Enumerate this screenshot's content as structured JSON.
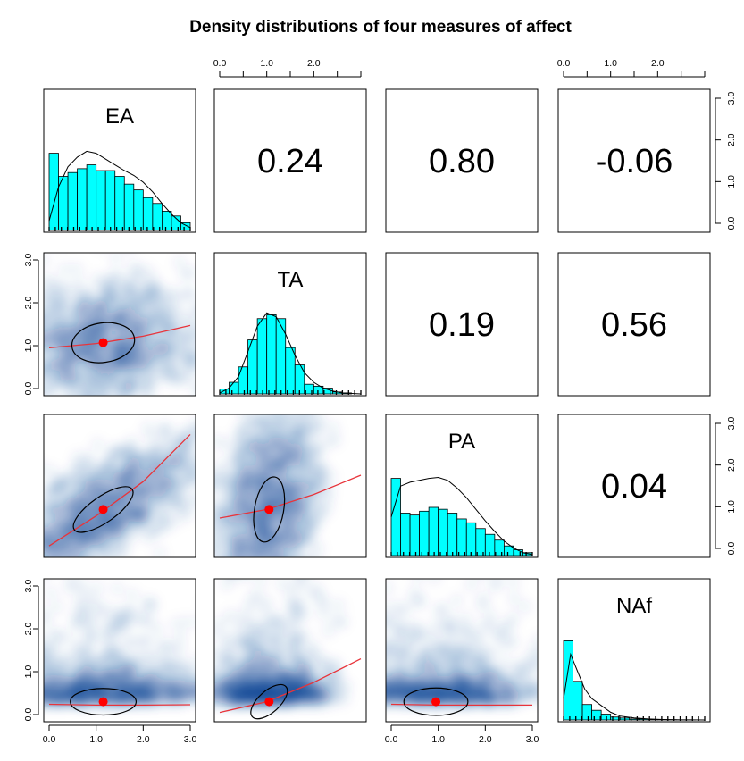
{
  "chart_data": {
    "type": "scatter",
    "title": "Density distributions of four measures of affect",
    "variables": [
      "EA",
      "TA",
      "PA",
      "NAf"
    ],
    "x_ticks": [
      "0.0",
      "1.0",
      "2.0",
      "3.0"
    ],
    "y_ticks": [
      "0.0",
      "1.0",
      "2.0",
      "3.0"
    ],
    "axis_range": [
      0,
      3
    ],
    "correlations": [
      {
        "pair": [
          "EA",
          "TA"
        ],
        "value": "0.24"
      },
      {
        "pair": [
          "EA",
          "PA"
        ],
        "value": "0.80"
      },
      {
        "pair": [
          "EA",
          "NAf"
        ],
        "value": "-0.06"
      },
      {
        "pair": [
          "TA",
          "PA"
        ],
        "value": "0.19"
      },
      {
        "pair": [
          "TA",
          "NAf"
        ],
        "value": "0.56"
      },
      {
        "pair": [
          "PA",
          "NAf"
        ],
        "value": "0.04"
      }
    ],
    "histograms": {
      "EA": {
        "bins": [
          0,
          0.2,
          0.4,
          0.6,
          0.8,
          1.0,
          1.2,
          1.4,
          1.6,
          1.8,
          2.0,
          2.2,
          2.4,
          2.6,
          2.8,
          3.0
        ],
        "counts": [
          0.8,
          0.56,
          0.6,
          0.64,
          0.68,
          0.62,
          0.62,
          0.56,
          0.48,
          0.42,
          0.34,
          0.28,
          0.2,
          0.15,
          0.08
        ],
        "density_x": [
          0,
          0.2,
          0.4,
          0.6,
          0.8,
          1.0,
          1.2,
          1.4,
          1.6,
          1.8,
          2.0,
          2.2,
          2.4,
          2.6,
          2.8,
          3.0
        ],
        "density_y": [
          0.1,
          0.45,
          0.66,
          0.76,
          0.82,
          0.8,
          0.74,
          0.68,
          0.62,
          0.57,
          0.5,
          0.4,
          0.28,
          0.17,
          0.08,
          0.03
        ]
      },
      "TA": {
        "bins": [
          0,
          0.2,
          0.4,
          0.6,
          0.8,
          1.0,
          1.2,
          1.4,
          1.6,
          1.8,
          2.0,
          2.2,
          2.4,
          2.6,
          2.8,
          3.0
        ],
        "counts": [
          0.05,
          0.12,
          0.28,
          0.56,
          0.78,
          0.82,
          0.78,
          0.48,
          0.3,
          0.1,
          0.08,
          0.06,
          0.02,
          0.01,
          0.0
        ],
        "density_x": [
          0,
          0.2,
          0.4,
          0.6,
          0.8,
          1.0,
          1.2,
          1.4,
          1.6,
          1.8,
          2.0,
          2.2,
          2.4,
          2.6,
          2.8,
          3.0
        ],
        "density_y": [
          0.01,
          0.06,
          0.18,
          0.44,
          0.7,
          0.84,
          0.8,
          0.62,
          0.4,
          0.22,
          0.12,
          0.06,
          0.03,
          0.01,
          0.005,
          0.0
        ]
      },
      "PA": {
        "bins": [
          0,
          0.2,
          0.4,
          0.6,
          0.8,
          1.0,
          1.2,
          1.4,
          1.6,
          1.8,
          2.0,
          2.2,
          2.4,
          2.6,
          2.8,
          3.0
        ],
        "counts": [
          0.8,
          0.44,
          0.42,
          0.46,
          0.5,
          0.48,
          0.44,
          0.38,
          0.34,
          0.28,
          0.22,
          0.16,
          0.1,
          0.06,
          0.03
        ],
        "density_x": [
          0,
          0.2,
          0.4,
          0.6,
          0.8,
          1.0,
          1.2,
          1.4,
          1.6,
          1.8,
          2.0,
          2.2,
          2.4,
          2.6,
          2.8,
          3.0
        ],
        "density_y": [
          0.4,
          0.72,
          0.76,
          0.78,
          0.8,
          0.81,
          0.78,
          0.7,
          0.6,
          0.48,
          0.36,
          0.25,
          0.15,
          0.08,
          0.03,
          0.01
        ]
      },
      "NAf": {
        "bins": [
          0,
          0.2,
          0.4,
          0.6,
          0.8,
          1.0,
          1.2,
          1.4,
          1.6,
          1.8,
          2.0,
          2.2,
          2.4,
          2.6,
          2.8,
          3.0
        ],
        "counts": [
          0.82,
          0.4,
          0.16,
          0.1,
          0.06,
          0.03,
          0.02,
          0.01,
          0.01,
          0.005,
          0.003,
          0.002,
          0.001,
          0.001,
          0.0
        ],
        "density_x": [
          0,
          0.15,
          0.3,
          0.45,
          0.6,
          0.8,
          1.0,
          1.2,
          1.5,
          1.8,
          2.1,
          2.4,
          2.7,
          3.0
        ],
        "density_y": [
          0.22,
          0.68,
          0.5,
          0.32,
          0.22,
          0.15,
          0.08,
          0.04,
          0.02,
          0.01,
          0.005,
          0.002,
          0.001,
          0.0
        ]
      }
    },
    "scatter_panels": [
      {
        "x": "EA",
        "y": "TA",
        "mean": [
          1.15,
          1.07
        ],
        "ellipse": {
          "rx": 0.67,
          "ry": 0.46,
          "angle": 8
        },
        "fit": [
          [
            0,
            0.95
          ],
          [
            1,
            1.05
          ],
          [
            2,
            1.22
          ],
          [
            3,
            1.47
          ]
        ]
      },
      {
        "x": "EA",
        "y": "PA",
        "mean": [
          1.15,
          0.95
        ],
        "ellipse": {
          "rx": 0.75,
          "ry": 0.3,
          "angle": 35
        },
        "fit": [
          [
            0,
            0.1
          ],
          [
            1,
            0.8
          ],
          [
            2,
            1.6
          ],
          [
            3,
            2.7
          ]
        ]
      },
      {
        "x": "TA",
        "y": "PA",
        "mean": [
          1.05,
          0.95
        ],
        "ellipse": {
          "rx": 0.7,
          "ry": 0.34,
          "angle": 80
        },
        "fit": [
          [
            0,
            0.75
          ],
          [
            1,
            0.95
          ],
          [
            2,
            1.3
          ],
          [
            3,
            1.75
          ]
        ]
      },
      {
        "x": "EA",
        "y": "NAf",
        "mean": [
          1.15,
          0.3
        ],
        "ellipse": {
          "rx": 0.7,
          "ry": 0.31,
          "angle": 0
        },
        "fit": [
          [
            0,
            0.24
          ],
          [
            1,
            0.22
          ],
          [
            2,
            0.22
          ],
          [
            3,
            0.23
          ]
        ]
      },
      {
        "x": "TA",
        "y": "NAf",
        "mean": [
          1.05,
          0.3
        ],
        "ellipse": {
          "rx": 0.48,
          "ry": 0.25,
          "angle": 42
        },
        "fit": [
          [
            0,
            0.05
          ],
          [
            1,
            0.3
          ],
          [
            2,
            0.75
          ],
          [
            3,
            1.3
          ]
        ]
      },
      {
        "x": "PA",
        "y": "NAf",
        "mean": [
          0.95,
          0.3
        ],
        "ellipse": {
          "rx": 0.68,
          "ry": 0.32,
          "angle": 0
        },
        "fit": [
          [
            0,
            0.24
          ],
          [
            1,
            0.22
          ],
          [
            2,
            0.22
          ],
          [
            3,
            0.22
          ]
        ]
      }
    ],
    "colors": {
      "bar_fill": "#00FFFF",
      "density_line": "#000000",
      "smooth": "#1f4f9a",
      "fit_line": "#e8343b",
      "mean_point": "#ff0000"
    },
    "grid": false
  }
}
